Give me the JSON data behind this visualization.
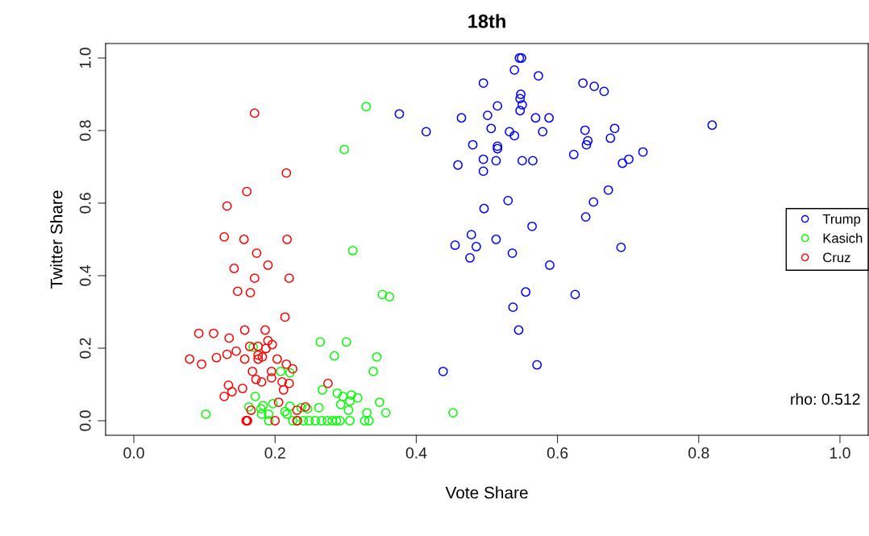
{
  "chart_data": {
    "type": "scatter",
    "title": "18th",
    "xlabel": "Vote Share",
    "ylabel": "Twitter Share",
    "xlim": [
      -0.04,
      1.04
    ],
    "ylim": [
      -0.04,
      1.04
    ],
    "xticks": [
      {
        "value": 0,
        "label": "0.0"
      },
      0.2,
      0.4,
      0.6,
      0.8,
      {
        "value": 1,
        "label": "1.0"
      }
    ],
    "yticks": [
      {
        "value": 0,
        "label": "0.0"
      },
      0.2,
      0.4,
      0.6,
      0.8,
      {
        "value": 1,
        "label": "1.0"
      }
    ],
    "grid": false,
    "legend": "right",
    "marker": "circle",
    "annotations": [
      "rho: 0.512"
    ],
    "series": [
      {
        "name": "Trump",
        "color": "#0000ff",
        "x": [
          0.549,
          0.546,
          0.539,
          0.573,
          0.495,
          0.636,
          0.652,
          0.666,
          0.548,
          0.547,
          0.55,
          0.547,
          0.515,
          0.376,
          0.464,
          0.501,
          0.569,
          0.588,
          0.414,
          0.506,
          0.532,
          0.539,
          0.579,
          0.639,
          0.681,
          0.819,
          0.675,
          0.643,
          0.641,
          0.721,
          0.701,
          0.692,
          0.48,
          0.515,
          0.515,
          0.495,
          0.459,
          0.513,
          0.55,
          0.565,
          0.495,
          0.623,
          0.672,
          0.651,
          0.53,
          0.496,
          0.64,
          0.564,
          0.478,
          0.455,
          0.485,
          0.513,
          0.476,
          0.536,
          0.69,
          0.589,
          0.555,
          0.625,
          0.537,
          0.545,
          0.571,
          0.438
        ],
        "values": [
          1.0,
          1.0,
          0.967,
          0.951,
          0.931,
          0.931,
          0.922,
          0.908,
          0.9,
          0.888,
          0.871,
          0.855,
          0.868,
          0.846,
          0.835,
          0.842,
          0.835,
          0.835,
          0.797,
          0.806,
          0.797,
          0.786,
          0.797,
          0.801,
          0.806,
          0.815,
          0.779,
          0.772,
          0.761,
          0.741,
          0.721,
          0.71,
          0.761,
          0.757,
          0.75,
          0.721,
          0.705,
          0.717,
          0.717,
          0.717,
          0.688,
          0.734,
          0.636,
          0.603,
          0.607,
          0.585,
          0.562,
          0.536,
          0.513,
          0.484,
          0.48,
          0.5,
          0.449,
          0.462,
          0.478,
          0.429,
          0.355,
          0.348,
          0.313,
          0.25,
          0.154,
          0.136
        ]
      },
      {
        "name": "Kasich",
        "color": "#00ff00",
        "x": [
          0.329,
          0.298,
          0.31,
          0.352,
          0.362,
          0.264,
          0.301,
          0.284,
          0.344,
          0.339,
          0.208,
          0.221,
          0.267,
          0.288,
          0.296,
          0.308,
          0.317,
          0.306,
          0.293,
          0.348,
          0.304,
          0.33,
          0.357,
          0.452,
          0.262,
          0.221,
          0.172,
          0.163,
          0.183,
          0.197,
          0.18,
          0.181,
          0.191,
          0.214,
          0.217,
          0.237,
          0.246,
          0.102,
          0.169,
          0.191,
          0.225,
          0.232,
          0.24,
          0.248,
          0.257,
          0.266,
          0.274,
          0.281,
          0.287,
          0.292,
          0.306,
          0.327,
          0.333
        ],
        "values": [
          0.866,
          0.748,
          0.469,
          0.348,
          0.342,
          0.217,
          0.217,
          0.179,
          0.176,
          0.136,
          0.136,
          0.132,
          0.085,
          0.076,
          0.067,
          0.071,
          0.063,
          0.054,
          0.045,
          0.051,
          0.029,
          0.022,
          0.022,
          0.022,
          0.036,
          0.04,
          0.067,
          0.038,
          0.042,
          0.047,
          0.033,
          0.018,
          0.018,
          0.025,
          0.018,
          0.036,
          0.033,
          0.018,
          0.203,
          0,
          0,
          0,
          0,
          0,
          0,
          0,
          0,
          0,
          0,
          0,
          0,
          0,
          0
        ]
      },
      {
        "name": "Cruz",
        "color": "#ff0000",
        "x": [
          0.171,
          0.216,
          0.16,
          0.132,
          0.128,
          0.156,
          0.217,
          0.174,
          0.19,
          0.142,
          0.171,
          0.22,
          0.147,
          0.165,
          0.214,
          0.092,
          0.113,
          0.135,
          0.157,
          0.186,
          0.19,
          0.196,
          0.164,
          0.176,
          0.187,
          0.079,
          0.096,
          0.117,
          0.132,
          0.145,
          0.157,
          0.176,
          0.176,
          0.182,
          0.203,
          0.216,
          0.225,
          0.168,
          0.195,
          0.173,
          0.181,
          0.195,
          0.21,
          0.22,
          0.134,
          0.139,
          0.154,
          0.128,
          0.212,
          0.205,
          0.166,
          0.243,
          0.231,
          0.16,
          0.161,
          0.159,
          0.2,
          0.231,
          0.275
        ],
        "values": [
          0.848,
          0.683,
          0.632,
          0.592,
          0.507,
          0.5,
          0.5,
          0.462,
          0.429,
          0.42,
          0.393,
          0.393,
          0.357,
          0.353,
          0.286,
          0.241,
          0.241,
          0.228,
          0.25,
          0.25,
          0.221,
          0.21,
          0.205,
          0.205,
          0.199,
          0.17,
          0.156,
          0.174,
          0.183,
          0.192,
          0.17,
          0.181,
          0.17,
          0.176,
          0.17,
          0.156,
          0.143,
          0.136,
          0.136,
          0.114,
          0.107,
          0.118,
          0.107,
          0.103,
          0.098,
          0.08,
          0.089,
          0.067,
          0.085,
          0.051,
          0.029,
          0.038,
          0.029,
          0,
          0,
          0,
          0,
          0,
          0.103
        ]
      }
    ]
  }
}
